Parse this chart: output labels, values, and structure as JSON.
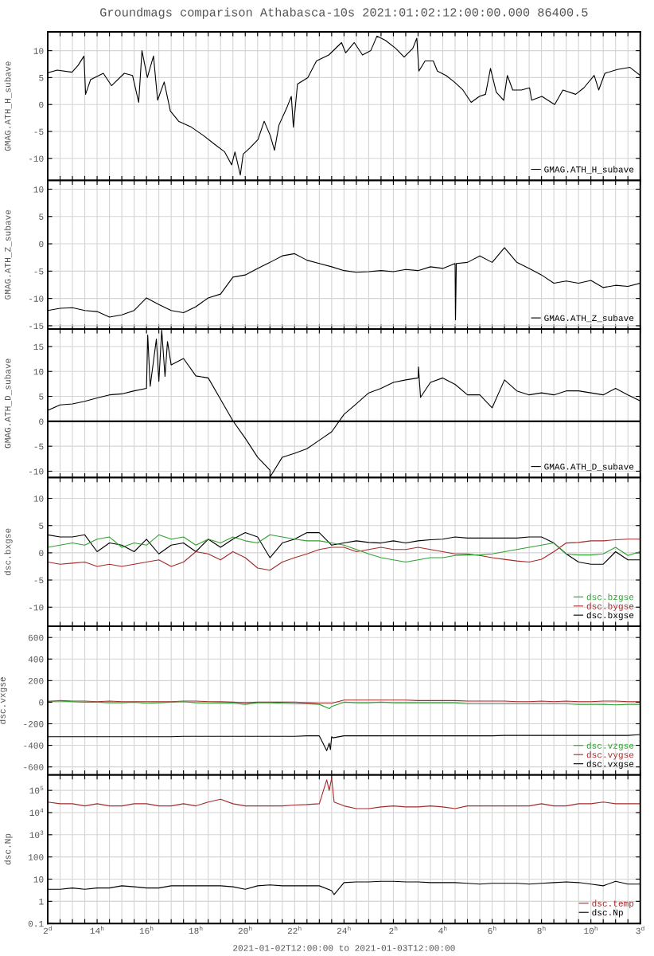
{
  "chart_data": [
    {
      "type": "line",
      "title": "Groundmags comparison Athabasca-10s 2021:01:02:12:00:00.000 86400.5",
      "ylabel": "GMAG.ATH_H_subave",
      "xlim": [
        "2021-01-02T12:00",
        "2021-01-03T12:00"
      ],
      "ylim": [
        -14.1,
        13.5
      ],
      "yticks": [
        -10,
        -5,
        0,
        5,
        10
      ],
      "grid": true,
      "legend": "bottom right",
      "tick_labels": "y",
      "series": [
        {
          "name": "GMAG.ATH_H_subave",
          "color": "#000000",
          "x": [
            "2021-01-02T12:00",
            "2021-01-02T12:23",
            "2021-01-02T12:59",
            "2021-01-02T13:14",
            "2021-01-02T13:28",
            "2021-01-02T13:32",
            "2021-01-02T13:44",
            "2021-01-02T14:15",
            "2021-01-02T14:35",
            "2021-01-02T15:06",
            "2021-01-02T15:26",
            "2021-01-02T15:41",
            "2021-01-02T15:49",
            "2021-01-02T16:02",
            "2021-01-02T16:17",
            "2021-01-02T16:27",
            "2021-01-02T16:43",
            "2021-01-02T16:58",
            "2021-01-02T17:18",
            "2021-01-02T17:49",
            "2021-01-02T18:19",
            "2021-01-02T18:44",
            "2021-01-02T19:10",
            "2021-01-02T19:27",
            "2021-01-02T19:35",
            "2021-01-02T19:48",
            "2021-01-02T19:55",
            "2021-01-02T20:11",
            "2021-01-02T20:31",
            "2021-01-02T20:46",
            "2021-01-02T21:01",
            "2021-01-02T21:11",
            "2021-01-02T21:22",
            "2021-01-02T21:42",
            "2021-01-02T21:52",
            "2021-01-02T21:57",
            "2021-01-02T22:07",
            "2021-01-02T22:32",
            "2021-01-02T22:53",
            "2021-01-02T23:23",
            "2021-01-02T23:54",
            "2021-01-03T00:04",
            "2021-01-03T00:25",
            "2021-01-03T00:45",
            "2021-01-03T01:05",
            "2021-01-03T01:20",
            "2021-01-03T01:41",
            "2021-01-03T02:06",
            "2021-01-03T02:26",
            "2021-01-03T02:47",
            "2021-01-03T02:57",
            "2021-01-03T03:02",
            "2021-01-03T03:17",
            "2021-01-03T03:37",
            "2021-01-03T03:47",
            "2021-01-03T04:08",
            "2021-01-03T04:28",
            "2021-01-03T04:49",
            "2021-01-03T05:09",
            "2021-01-03T05:29",
            "2021-01-03T05:44",
            "2021-01-03T05:56",
            "2021-01-03T06:10",
            "2021-01-03T06:28",
            "2021-01-03T06:37",
            "2021-01-03T06:50",
            "2021-01-03T07:11",
            "2021-01-03T07:31",
            "2021-01-03T07:36",
            "2021-01-03T08:01",
            "2021-01-03T08:32",
            "2021-01-03T08:52",
            "2021-01-03T09:23",
            "2021-01-03T09:43",
            "2021-01-03T10:08",
            "2021-01-03T10:19",
            "2021-01-03T10:34",
            "2021-01-03T11:04",
            "2021-01-03T11:35",
            "2021-01-03T12:00"
          ],
          "values": [
            5.9,
            6.4,
            6.0,
            7.3,
            9.0,
            1.9,
            4.6,
            5.8,
            3.5,
            5.8,
            5.4,
            0.4,
            10,
            5,
            9,
            0.8,
            4.2,
            -1.2,
            -3.1,
            -4.2,
            -5.8,
            -7.3,
            -8.8,
            -11.2,
            -8.8,
            -13.1,
            -9.2,
            -8.1,
            -6.5,
            -3.1,
            -5.8,
            -8.5,
            -3.8,
            -0.4,
            1.5,
            -4.2,
            3.8,
            5,
            8.1,
            9.2,
            11.5,
            9.6,
            11.5,
            9.2,
            10,
            12.7,
            11.9,
            10.4,
            8.8,
            10.4,
            12.3,
            6.2,
            8.1,
            8.1,
            6.2,
            5.4,
            4.2,
            2.7,
            0.4,
            1.5,
            1.9,
            6.7,
            2.3,
            0.8,
            5.4,
            2.7,
            2.7,
            3.1,
            0.8,
            1.5,
            0,
            2.7,
            1.9,
            3.1,
            5.4,
            2.7,
            5.8,
            6.5,
            6.9,
            5.4
          ]
        }
      ]
    },
    {
      "type": "line",
      "ylabel": "GMAG.ATH_Z_subave",
      "xlim": [
        "2021-01-02T12:00",
        "2021-01-03T12:00"
      ],
      "ylim": [
        -15.6,
        11.6
      ],
      "yticks": [
        -15,
        -10,
        -5,
        0,
        5,
        10
      ],
      "grid": true,
      "legend": "bottom right",
      "tick_labels": "y",
      "series": [
        {
          "name": "GMAG.ATH_Z_subave",
          "color": "#000000",
          "x": [
            "2021-01-02T12:00",
            "2021-01-02T12:30",
            "2021-01-02T13:00",
            "2021-01-02T13:30",
            "2021-01-02T14:00",
            "2021-01-02T14:30",
            "2021-01-02T15:00",
            "2021-01-02T15:30",
            "2021-01-02T16:00",
            "2021-01-02T16:30",
            "2021-01-02T17:00",
            "2021-01-02T17:30",
            "2021-01-02T18:00",
            "2021-01-02T18:30",
            "2021-01-02T19:00",
            "2021-01-02T19:30",
            "2021-01-02T20:00",
            "2021-01-02T20:30",
            "2021-01-02T21:00",
            "2021-01-02T21:30",
            "2021-01-02T22:00",
            "2021-01-02T22:30",
            "2021-01-02T23:00",
            "2021-01-02T23:30",
            "2021-01-03T00:00",
            "2021-01-03T00:30",
            "2021-01-03T01:00",
            "2021-01-03T01:30",
            "2021-01-03T02:00",
            "2021-01-03T02:30",
            "2021-01-03T03:00",
            "2021-01-03T03:30",
            "2021-01-03T04:00",
            "2021-01-03T04:30",
            "2021-01-03T04:31",
            "2021-01-03T04:33",
            "2021-01-03T05:00",
            "2021-01-03T05:30",
            "2021-01-03T06:00",
            "2021-01-03T06:30",
            "2021-01-03T07:00",
            "2021-01-03T07:30",
            "2021-01-03T08:00",
            "2021-01-03T08:30",
            "2021-01-03T09:00",
            "2021-01-03T09:30",
            "2021-01-03T10:00",
            "2021-01-03T10:30",
            "2021-01-03T11:00",
            "2021-01-03T11:30",
            "2021-01-03T12:00"
          ],
          "values": [
            -12.2,
            -11.8,
            -11.7,
            -12.2,
            -12.4,
            -13.4,
            -13.0,
            -12.2,
            -9.9,
            -11.1,
            -12.2,
            -12.6,
            -11.5,
            -9.9,
            -9.2,
            -6.1,
            -5.7,
            -4.5,
            -3.4,
            -2.2,
            -1.8,
            -3.0,
            -3.6,
            -4.2,
            -4.9,
            -5.2,
            -5.1,
            -4.9,
            -5.1,
            -4.7,
            -4.9,
            -4.2,
            -4.5,
            -3.6,
            -13.9,
            -3.6,
            -3.4,
            -2.2,
            -3.4,
            -0.7,
            -3.4,
            -4.5,
            -5.7,
            -7.2,
            -6.8,
            -7.2,
            -6.7,
            -8.0,
            -7.6,
            -7.8,
            -7.2
          ]
        }
      ]
    },
    {
      "type": "line",
      "ylabel": "GMAG.ATH_D_subave",
      "xlim": [
        "2021-01-02T12:00",
        "2021-01-03T12:00"
      ],
      "ylim": [
        -11.3,
        18.5
      ],
      "yticks": [
        -10,
        -5,
        0,
        5,
        10,
        15
      ],
      "grid": true,
      "legend": "bottom right",
      "tick_labels": "y",
      "ref_lines": [
        {
          "axis": "y",
          "value": 0,
          "color": "#000000"
        }
      ],
      "series": [
        {
          "name": "GMAG.ATH_D_subave",
          "color": "#000000",
          "x": [
            "2021-01-02T12:00",
            "2021-01-02T12:30",
            "2021-01-02T13:00",
            "2021-01-02T13:30",
            "2021-01-02T14:00",
            "2021-01-02T14:30",
            "2021-01-02T15:00",
            "2021-01-02T15:30",
            "2021-01-02T16:00",
            "2021-01-02T16:03",
            "2021-01-02T16:09",
            "2021-01-02T16:24",
            "2021-01-02T16:30",
            "2021-01-02T16:37",
            "2021-01-02T16:45",
            "2021-01-02T16:51",
            "2021-01-02T17:00",
            "2021-01-02T17:30",
            "2021-01-02T18:00",
            "2021-01-02T18:30",
            "2021-01-02T19:00",
            "2021-01-02T19:30",
            "2021-01-02T20:00",
            "2021-01-02T20:30",
            "2021-01-02T21:00",
            "2021-01-02T21:01",
            "2021-01-02T21:30",
            "2021-01-02T22:00",
            "2021-01-02T22:30",
            "2021-01-02T23:00",
            "2021-01-02T23:30",
            "2021-01-03T00:00",
            "2021-01-03T00:30",
            "2021-01-03T01:00",
            "2021-01-03T01:30",
            "2021-01-03T02:00",
            "2021-01-03T02:30",
            "2021-01-03T03:00",
            "2021-01-03T03:01",
            "2021-01-03T03:06",
            "2021-01-03T03:30",
            "2021-01-03T04:00",
            "2021-01-03T04:30",
            "2021-01-03T05:00",
            "2021-01-03T05:30",
            "2021-01-03T06:00",
            "2021-01-03T06:30",
            "2021-01-03T07:00",
            "2021-01-03T07:30",
            "2021-01-03T08:00",
            "2021-01-03T08:30",
            "2021-01-03T09:00",
            "2021-01-03T09:30",
            "2021-01-03T10:00",
            "2021-01-03T10:30",
            "2021-01-03T11:00",
            "2021-01-03T11:30",
            "2021-01-03T12:00"
          ],
          "values": [
            2.2,
            3.3,
            3.5,
            4.0,
            4.7,
            5.3,
            5.5,
            6.1,
            6.6,
            17.3,
            7.0,
            16.5,
            8.0,
            18.3,
            9.0,
            16.0,
            11.3,
            12.6,
            9.1,
            8.7,
            4.4,
            0.1,
            -3.4,
            -7.2,
            -9.8,
            -11.1,
            -7.2,
            -6.4,
            -5.5,
            -3.8,
            -2.1,
            1.4,
            3.5,
            5.7,
            6.6,
            7.8,
            8.3,
            8.7,
            10.9,
            4.8,
            7.8,
            8.7,
            7.4,
            5.3,
            5.3,
            2.7,
            8.3,
            6.1,
            5.3,
            5.7,
            5.3,
            6.1,
            6.1,
            5.7,
            5.3,
            6.6,
            5.3,
            4.1
          ]
        }
      ]
    },
    {
      "type": "line",
      "ylabel": "dsc.bxgse",
      "xlim": [
        "2021-01-02T12:00",
        "2021-01-03T12:00"
      ],
      "ylim": [
        -13.5,
        13.8
      ],
      "yticks": [
        -10,
        -5,
        0,
        5,
        10
      ],
      "grid": true,
      "legend": "bottom right",
      "tick_labels": "y",
      "x": [
        "2021-01-02T12:00",
        "2021-01-02T12:30",
        "2021-01-02T13:00",
        "2021-01-02T13:30",
        "2021-01-02T14:00",
        "2021-01-02T14:30",
        "2021-01-02T15:00",
        "2021-01-02T15:30",
        "2021-01-02T16:00",
        "2021-01-02T16:30",
        "2021-01-02T17:00",
        "2021-01-02T17:30",
        "2021-01-02T18:00",
        "2021-01-02T18:30",
        "2021-01-02T19:00",
        "2021-01-02T19:30",
        "2021-01-02T20:00",
        "2021-01-02T20:30",
        "2021-01-02T21:00",
        "2021-01-02T21:30",
        "2021-01-02T22:00",
        "2021-01-02T22:30",
        "2021-01-02T23:00",
        "2021-01-02T23:30",
        "2021-01-03T00:00",
        "2021-01-03T00:30",
        "2021-01-03T01:00",
        "2021-01-03T01:30",
        "2021-01-03T02:00",
        "2021-01-03T02:30",
        "2021-01-03T03:00",
        "2021-01-03T03:30",
        "2021-01-03T04:00",
        "2021-01-03T04:30",
        "2021-01-03T05:00",
        "2021-01-03T05:30",
        "2021-01-03T06:00",
        "2021-01-03T06:30",
        "2021-01-03T07:00",
        "2021-01-03T07:30",
        "2021-01-03T08:00",
        "2021-01-03T08:30",
        "2021-01-03T09:00",
        "2021-01-03T09:30",
        "2021-01-03T10:00",
        "2021-01-03T10:30",
        "2021-01-03T11:00",
        "2021-01-03T11:30",
        "2021-01-03T12:00"
      ],
      "series": [
        {
          "name": "dsc.bxgse",
          "color": "#000000",
          "values": [
            3.3,
            2.9,
            2.9,
            3.3,
            0.2,
            1.8,
            1.4,
            0.2,
            2.5,
            -0.2,
            1.4,
            1.8,
            0.2,
            2.5,
            1.0,
            2.5,
            3.7,
            2.9,
            -0.9,
            1.8,
            2.5,
            3.7,
            3.7,
            1.4,
            1.8,
            2.2,
            1.9,
            1.8,
            2.2,
            1.8,
            2.2,
            2.4,
            2.5,
            2.9,
            2.7,
            2.7,
            2.7,
            2.7,
            2.7,
            2.9,
            2.9,
            1.8,
            -0.2,
            -1.7,
            -2.1,
            -2.1,
            0.2,
            -1.3,
            -1.3
          ]
        },
        {
          "name": "dsc.bygse",
          "color": "#a52a2a",
          "values": [
            -1.7,
            -2.1,
            -1.9,
            -1.7,
            -2.5,
            -2.1,
            -2.5,
            -2.1,
            -1.7,
            -1.3,
            -2.5,
            -1.7,
            0.2,
            -0.2,
            -1.3,
            0.2,
            -0.9,
            -2.8,
            -3.2,
            -1.7,
            -0.9,
            -0.2,
            0.6,
            1.0,
            1.0,
            0.2,
            0.6,
            1.0,
            0.6,
            0.6,
            1.0,
            0.6,
            0.2,
            -0.2,
            -0.2,
            -0.5,
            -0.9,
            -1.2,
            -1.5,
            -1.7,
            -1.2,
            0.2,
            1.8,
            1.9,
            2.2,
            2.2,
            2.4,
            2.5,
            2.5
          ]
        },
        {
          "name": "dsc.bzgse",
          "color": "#30a030",
          "values": [
            1.0,
            1.4,
            1.8,
            1.4,
            2.5,
            2.9,
            1.0,
            1.8,
            1.4,
            3.3,
            2.5,
            2.9,
            1.4,
            2.5,
            1.8,
            2.9,
            2.2,
            1.8,
            3.3,
            2.9,
            2.5,
            2.2,
            2.2,
            1.8,
            1.4,
            0.6,
            -0.2,
            -0.9,
            -1.3,
            -1.7,
            -1.3,
            -0.9,
            -0.9,
            -0.5,
            -0.4,
            -0.4,
            -0.2,
            0.2,
            0.6,
            1.0,
            1.4,
            1.8,
            -0.2,
            -0.4,
            -0.4,
            -0.2,
            1.0,
            -0.5,
            0.2
          ]
        }
      ]
    },
    {
      "type": "line",
      "ylabel": "dsc.vxgse",
      "xlim": [
        "2021-01-02T12:00",
        "2021-01-03T12:00"
      ],
      "ylim": [
        -674,
        704
      ],
      "yticks": [
        -600,
        -400,
        -200,
        0,
        200,
        400,
        600
      ],
      "grid": true,
      "legend": "bottom right",
      "tick_labels": "y",
      "x": [
        "2021-01-02T12:00",
        "2021-01-02T12:30",
        "2021-01-02T13:00",
        "2021-01-02T13:30",
        "2021-01-02T14:00",
        "2021-01-02T14:30",
        "2021-01-02T15:00",
        "2021-01-02T15:30",
        "2021-01-02T16:00",
        "2021-01-02T16:30",
        "2021-01-02T17:00",
        "2021-01-02T17:30",
        "2021-01-02T18:00",
        "2021-01-02T18:30",
        "2021-01-02T19:00",
        "2021-01-02T19:30",
        "2021-01-02T20:00",
        "2021-01-02T20:30",
        "2021-01-02T21:00",
        "2021-01-02T21:30",
        "2021-01-02T22:00",
        "2021-01-02T22:30",
        "2021-01-02T23:00",
        "2021-01-02T23:30",
        "2021-01-03T00:00",
        "2021-01-03T00:30",
        "2021-01-03T01:00",
        "2021-01-03T01:30",
        "2021-01-03T02:00",
        "2021-01-03T02:30",
        "2021-01-03T03:00",
        "2021-01-03T03:30",
        "2021-01-03T04:00",
        "2021-01-03T04:30",
        "2021-01-03T05:00",
        "2021-01-03T05:30",
        "2021-01-03T06:00",
        "2021-01-03T06:30",
        "2021-01-03T07:00",
        "2021-01-03T07:30",
        "2021-01-03T08:00",
        "2021-01-03T08:30",
        "2021-01-03T09:00",
        "2021-01-03T09:30",
        "2021-01-03T10:00",
        "2021-01-03T10:30",
        "2021-01-03T11:00",
        "2021-01-03T11:30",
        "2021-01-03T12:00"
      ],
      "series": [
        {
          "name": "dsc.vxgse",
          "color": "#000000",
          "x": [
            "2021-01-02T12:00",
            "2021-01-02T12:30",
            "2021-01-02T13:00",
            "2021-01-02T13:30",
            "2021-01-02T14:00",
            "2021-01-02T14:30",
            "2021-01-02T15:00",
            "2021-01-02T15:30",
            "2021-01-02T16:00",
            "2021-01-02T16:30",
            "2021-01-02T17:00",
            "2021-01-02T17:30",
            "2021-01-02T18:00",
            "2021-01-02T18:30",
            "2021-01-02T19:00",
            "2021-01-02T19:30",
            "2021-01-02T20:00",
            "2021-01-02T20:30",
            "2021-01-02T21:00",
            "2021-01-02T21:30",
            "2021-01-02T22:00",
            "2021-01-02T22:30",
            "2021-01-02T23:00",
            "2021-01-02T23:18",
            "2021-01-02T23:24",
            "2021-01-02T23:27",
            "2021-01-02T23:30",
            "2021-01-02T23:33",
            "2021-01-03T00:00",
            "2021-01-03T00:30",
            "2021-01-03T01:00",
            "2021-01-03T01:30",
            "2021-01-03T02:00",
            "2021-01-03T02:30",
            "2021-01-03T03:00",
            "2021-01-03T03:30",
            "2021-01-03T04:00",
            "2021-01-03T04:30",
            "2021-01-03T05:00",
            "2021-01-03T05:30",
            "2021-01-03T06:00",
            "2021-01-03T06:30",
            "2021-01-03T07:00",
            "2021-01-03T07:30",
            "2021-01-03T08:00",
            "2021-01-03T08:30",
            "2021-01-03T09:00",
            "2021-01-03T09:30",
            "2021-01-03T10:00",
            "2021-01-03T10:30",
            "2021-01-03T11:00",
            "2021-01-03T11:30",
            "2021-01-03T12:00"
          ],
          "values": [
            -320,
            -320,
            -320,
            -320,
            -320,
            -320,
            -320,
            -320,
            -320,
            -320,
            -320,
            -316,
            -316,
            -316,
            -316,
            -316,
            -316,
            -316,
            -316,
            -316,
            -316,
            -312,
            -312,
            -450,
            -380,
            -440,
            -320,
            -330,
            -312,
            -312,
            -312,
            -312,
            -312,
            -312,
            -312,
            -312,
            -312,
            -312,
            -312,
            -312,
            -312,
            -308,
            -308,
            -308,
            -308,
            -308,
            -308,
            -308,
            -308,
            -308,
            -308,
            -308,
            -300
          ]
        },
        {
          "name": "dsc.vygse",
          "color": "#a52a2a",
          "values": [
            5,
            15,
            10,
            10,
            5,
            10,
            5,
            5,
            5,
            5,
            5,
            10,
            10,
            5,
            5,
            0,
            -5,
            0,
            0,
            0,
            0,
            -5,
            -10,
            -10,
            20,
            20,
            20,
            20,
            20,
            20,
            15,
            15,
            15,
            15,
            10,
            10,
            10,
            10,
            5,
            5,
            10,
            5,
            10,
            5,
            5,
            10,
            10,
            5,
            5
          ]
        },
        {
          "name": "dsc.vzgse",
          "color": "#30a030",
          "x": [
            "2021-01-02T12:00",
            "2021-01-02T12:30",
            "2021-01-02T13:00",
            "2021-01-02T13:30",
            "2021-01-02T14:00",
            "2021-01-02T14:30",
            "2021-01-02T15:00",
            "2021-01-02T15:30",
            "2021-01-02T16:00",
            "2021-01-02T16:30",
            "2021-01-02T17:00",
            "2021-01-02T17:30",
            "2021-01-02T18:00",
            "2021-01-02T18:30",
            "2021-01-02T19:00",
            "2021-01-02T19:30",
            "2021-01-02T20:00",
            "2021-01-02T20:30",
            "2021-01-02T21:00",
            "2021-01-02T21:30",
            "2021-01-02T22:00",
            "2021-01-02T22:30",
            "2021-01-02T23:00",
            "2021-01-02T23:24",
            "2021-01-02T23:30",
            "2021-01-03T00:00",
            "2021-01-03T00:30",
            "2021-01-03T01:00",
            "2021-01-03T01:30",
            "2021-01-03T02:00",
            "2021-01-03T02:30",
            "2021-01-03T03:00",
            "2021-01-03T03:30",
            "2021-01-03T04:00",
            "2021-01-03T04:30",
            "2021-01-03T05:00",
            "2021-01-03T05:30",
            "2021-01-03T06:00",
            "2021-01-03T06:30",
            "2021-01-03T07:00",
            "2021-01-03T07:30",
            "2021-01-03T08:00",
            "2021-01-03T08:30",
            "2021-01-03T09:00",
            "2021-01-03T09:30",
            "2021-01-03T10:00",
            "2021-01-03T10:30",
            "2021-01-03T11:00",
            "2021-01-03T11:30",
            "2021-01-03T12:00"
          ],
          "values": [
            10,
            10,
            5,
            0,
            0,
            -5,
            -5,
            0,
            -10,
            -5,
            0,
            5,
            -5,
            -10,
            -5,
            -10,
            -20,
            -5,
            -5,
            -10,
            -15,
            -15,
            -20,
            -60,
            -40,
            0,
            -5,
            -5,
            0,
            -5,
            -5,
            -5,
            -5,
            -5,
            -5,
            -15,
            -15,
            -15,
            -15,
            -15,
            -15,
            -15,
            -15,
            -15,
            -20,
            -20,
            -20,
            -25,
            -20,
            -20
          ]
        }
      ]
    },
    {
      "type": "line",
      "ylabel": "dsc.Np",
      "xlabel": "2021-01-02T12:00:00 to 2021-01-03T12:00:00",
      "log": "y",
      "xlim": [
        "2021-01-02T12:00",
        "2021-01-03T12:00"
      ],
      "ylim": [
        0.1,
        500000
      ],
      "yticks": [
        0.1,
        1,
        10,
        100,
        {
          "value": 1000,
          "label": "10$^{3}$"
        },
        {
          "value": 10000,
          "label": "10$^{4}$"
        },
        {
          "value": 100000,
          "label": "10$^{5}$"
        }
      ],
      "grid": true,
      "legend": "bottom right",
      "xticks": [
        {
          "value": "2021-01-02T12:00",
          "label": "2$^{d}$"
        },
        {
          "value": "2021-01-02T12:30",
          "label": null
        },
        {
          "value": "2021-01-02T13:00",
          "label": null
        },
        {
          "value": "2021-01-02T13:30",
          "label": null
        },
        {
          "value": "2021-01-02T14:00",
          "label": "14$^{h}$"
        },
        {
          "value": "2021-01-02T14:30",
          "label": null
        },
        {
          "value": "2021-01-02T15:00",
          "label": null
        },
        {
          "value": "2021-01-02T15:30",
          "label": null
        },
        {
          "value": "2021-01-02T16:00",
          "label": "16$^{h}$"
        },
        {
          "value": "2021-01-02T16:30",
          "label": null
        },
        {
          "value": "2021-01-02T17:00",
          "label": null
        },
        {
          "value": "2021-01-02T17:30",
          "label": null
        },
        {
          "value": "2021-01-02T18:00",
          "label": "18$^{h}$"
        },
        {
          "value": "2021-01-02T18:30",
          "label": null
        },
        {
          "value": "2021-01-02T19:00",
          "label": null
        },
        {
          "value": "2021-01-02T19:30",
          "label": null
        },
        {
          "value": "2021-01-02T20:00",
          "label": "20$^{h}$"
        },
        {
          "value": "2021-01-02T20:30",
          "label": null
        },
        {
          "value": "2021-01-02T21:00",
          "label": null
        },
        {
          "value": "2021-01-02T21:30",
          "label": null
        },
        {
          "value": "2021-01-02T22:00",
          "label": "22$^{h}$"
        },
        {
          "value": "2021-01-02T22:30",
          "label": null
        },
        {
          "value": "2021-01-02T23:00",
          "label": null
        },
        {
          "value": "2021-01-02T23:30",
          "label": null
        },
        {
          "value": "2021-01-03T00:00",
          "label": "24$^{h}$"
        },
        {
          "value": "2021-01-03T00:30",
          "label": null
        },
        {
          "value": "2021-01-03T01:00",
          "label": null
        },
        {
          "value": "2021-01-03T01:30",
          "label": null
        },
        {
          "value": "2021-01-03T02:00",
          "label": "2$^{h}$"
        },
        {
          "value": "2021-01-03T02:30",
          "label": null
        },
        {
          "value": "2021-01-03T03:00",
          "label": null
        },
        {
          "value": "2021-01-03T03:30",
          "label": null
        },
        {
          "value": "2021-01-03T04:00",
          "label": "4$^{h}$"
        },
        {
          "value": "2021-01-03T04:30",
          "label": null
        },
        {
          "value": "2021-01-03T05:00",
          "label": null
        },
        {
          "value": "2021-01-03T05:30",
          "label": null
        },
        {
          "value": "2021-01-03T06:00",
          "label": "6$^{h}$"
        },
        {
          "value": "2021-01-03T06:30",
          "label": null
        },
        {
          "value": "2021-01-03T07:00",
          "label": null
        },
        {
          "value": "2021-01-03T07:30",
          "label": null
        },
        {
          "value": "2021-01-03T08:00",
          "label": "8$^{h}$"
        },
        {
          "value": "2021-01-03T08:30",
          "label": null
        },
        {
          "value": "2021-01-03T09:00",
          "label": null
        },
        {
          "value": "2021-01-03T09:30",
          "label": null
        },
        {
          "value": "2021-01-03T10:00",
          "label": "10$^{h}$"
        },
        {
          "value": "2021-01-03T10:30",
          "label": null
        },
        {
          "value": "2021-01-03T11:00",
          "label": null
        },
        {
          "value": "2021-01-03T11:30",
          "label": null
        },
        {
          "value": "2021-01-03T12:00",
          "label": "3$^{d}$"
        }
      ],
      "series": [
        {
          "name": "dsc.Np",
          "color": "#000000",
          "x": [
            "2021-01-02T12:00",
            "2021-01-02T12:30",
            "2021-01-02T13:00",
            "2021-01-02T13:30",
            "2021-01-02T14:00",
            "2021-01-02T14:30",
            "2021-01-02T15:00",
            "2021-01-02T15:30",
            "2021-01-02T16:00",
            "2021-01-02T16:30",
            "2021-01-02T17:00",
            "2021-01-02T17:30",
            "2021-01-02T18:00",
            "2021-01-02T18:30",
            "2021-01-02T19:00",
            "2021-01-02T19:30",
            "2021-01-02T20:00",
            "2021-01-02T20:30",
            "2021-01-02T21:00",
            "2021-01-02T21:30",
            "2021-01-02T22:00",
            "2021-01-02T22:30",
            "2021-01-02T23:00",
            "2021-01-02T23:30",
            "2021-01-02T23:36",
            "2021-01-03T00:00",
            "2021-01-03T00:30",
            "2021-01-03T01:00",
            "2021-01-03T01:30",
            "2021-01-03T02:00",
            "2021-01-03T02:30",
            "2021-01-03T03:00",
            "2021-01-03T03:30",
            "2021-01-03T04:00",
            "2021-01-03T04:30",
            "2021-01-03T05:00",
            "2021-01-03T05:30",
            "2021-01-03T06:00",
            "2021-01-03T06:30",
            "2021-01-03T07:00",
            "2021-01-03T07:30",
            "2021-01-03T08:00",
            "2021-01-03T08:30",
            "2021-01-03T09:00",
            "2021-01-03T09:30",
            "2021-01-03T10:00",
            "2021-01-03T10:30",
            "2021-01-03T11:00",
            "2021-01-03T11:30",
            "2021-01-03T12:00"
          ],
          "values": [
            3.5,
            3.5,
            4,
            3.5,
            4,
            4,
            5,
            4.5,
            4,
            4,
            5,
            5,
            5,
            5,
            5,
            4.5,
            3.5,
            5,
            5.5,
            5,
            5,
            5,
            5,
            3,
            2,
            7,
            7.5,
            7.5,
            8,
            8,
            7.5,
            7.5,
            7,
            7,
            7,
            6.5,
            6,
            6.5,
            6.5,
            6.5,
            6,
            6.5,
            7,
            7.5,
            7,
            6,
            5,
            8,
            6,
            6
          ]
        },
        {
          "name": "dsc.temp",
          "color": "#a52a2a",
          "x": [
            "2021-01-02T12:00",
            "2021-01-02T12:30",
            "2021-01-02T13:00",
            "2021-01-02T13:30",
            "2021-01-02T14:00",
            "2021-01-02T14:30",
            "2021-01-02T15:00",
            "2021-01-02T15:30",
            "2021-01-02T16:00",
            "2021-01-02T16:30",
            "2021-01-02T17:00",
            "2021-01-02T17:30",
            "2021-01-02T18:00",
            "2021-01-02T18:30",
            "2021-01-02T19:00",
            "2021-01-02T19:30",
            "2021-01-02T20:00",
            "2021-01-02T20:30",
            "2021-01-02T21:00",
            "2021-01-02T21:30",
            "2021-01-02T22:00",
            "2021-01-02T22:30",
            "2021-01-02T23:00",
            "2021-01-02T23:18",
            "2021-01-02T23:24",
            "2021-01-02T23:30",
            "2021-01-02T23:36",
            "2021-01-03T00:00",
            "2021-01-03T00:30",
            "2021-01-03T01:00",
            "2021-01-03T01:30",
            "2021-01-03T02:00",
            "2021-01-03T02:30",
            "2021-01-03T03:00",
            "2021-01-03T03:30",
            "2021-01-03T04:00",
            "2021-01-03T04:30",
            "2021-01-03T05:00",
            "2021-01-03T05:30",
            "2021-01-03T06:00",
            "2021-01-03T06:30",
            "2021-01-03T07:00",
            "2021-01-03T07:30",
            "2021-01-03T08:00",
            "2021-01-03T08:30",
            "2021-01-03T09:00",
            "2021-01-03T09:30",
            "2021-01-03T10:00",
            "2021-01-03T10:30",
            "2021-01-03T11:00",
            "2021-01-03T11:30",
            "2021-01-03T12:00"
          ],
          "values": [
            30000,
            25000,
            25000,
            20000,
            25000,
            20000,
            20000,
            25000,
            25000,
            20000,
            20000,
            25000,
            20000,
            30000,
            40000,
            25000,
            20000,
            20000,
            20000,
            20000,
            22000,
            23000,
            25000,
            300000,
            100000,
            350000,
            30000,
            20000,
            15000,
            15000,
            18000,
            20000,
            18000,
            18000,
            20000,
            18000,
            15000,
            20000,
            20000,
            20000,
            20000,
            20000,
            20000,
            25000,
            20000,
            20000,
            25000,
            25000,
            30000,
            25000,
            25000,
            25000
          ]
        }
      ]
    }
  ]
}
